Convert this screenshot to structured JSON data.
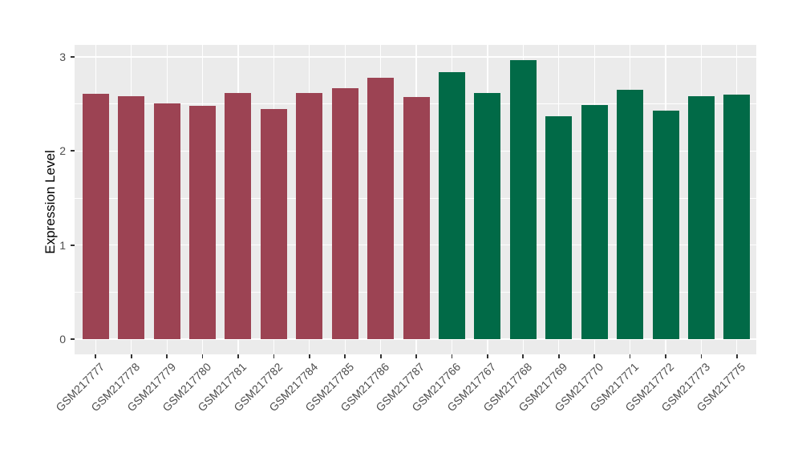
{
  "chart_data": {
    "type": "bar",
    "title": "",
    "xlabel": "",
    "ylabel": "Expression Level",
    "ylim": [
      -0.16,
      3.13
    ],
    "yticks": [
      0,
      1,
      2,
      3
    ],
    "yticks_minor": [
      0.5,
      1.5,
      2.5
    ],
    "grid": true,
    "legend": "none",
    "categories": [
      "GSM217777",
      "GSM217778",
      "GSM217779",
      "GSM217780",
      "GSM217781",
      "GSM217782",
      "GSM217784",
      "GSM217785",
      "GSM217786",
      "GSM217787",
      "GSM217766",
      "GSM217767",
      "GSM217768",
      "GSM217769",
      "GSM217770",
      "GSM217771",
      "GSM217772",
      "GSM217773",
      "GSM217775"
    ],
    "values": [
      2.61,
      2.58,
      2.51,
      2.48,
      2.62,
      2.45,
      2.62,
      2.67,
      2.78,
      2.57,
      2.84,
      2.62,
      2.97,
      2.37,
      2.49,
      2.65,
      2.43,
      2.58,
      2.6
    ],
    "group_index": [
      0,
      0,
      0,
      0,
      0,
      0,
      0,
      0,
      0,
      0,
      1,
      1,
      1,
      1,
      1,
      1,
      1,
      1,
      1
    ],
    "group_colors": [
      "#9C4353",
      "#016A47"
    ],
    "panel_background": "#EBEBEB",
    "grid_color": "#FFFFFF",
    "tick_mark_color": "#333333",
    "tick_label_color": "#4D4D4D",
    "axis_title_color": "#000000"
  }
}
